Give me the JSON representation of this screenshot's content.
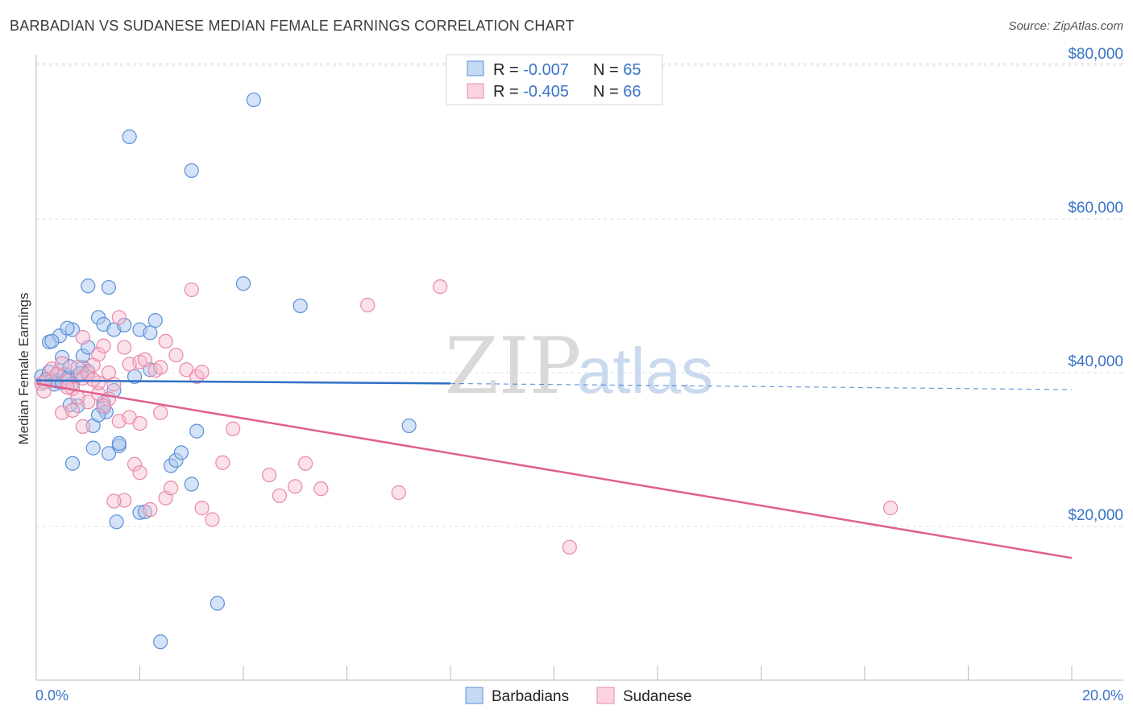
{
  "title": "BARBADIAN VS SUDANESE MEDIAN FEMALE EARNINGS CORRELATION CHART",
  "source": "Source: ZipAtlas.com",
  "watermark": {
    "zip": "ZIP",
    "atlas": "atlas"
  },
  "colors": {
    "blue_fill": "#a9c8f0",
    "blue_stroke": "#5b8fd6",
    "blue_line": "#2f6fc4",
    "pink_fill": "#f7bcd0",
    "pink_stroke": "#e888a8",
    "pink_line": "#e0608e",
    "axis_text": "#3a74c8",
    "grid": "#dddddd"
  },
  "legend": {
    "rows": [
      {
        "r_label": "R = ",
        "r_value": "-0.007",
        "n_label": "N = ",
        "n_value": "65",
        "series": "barbadians"
      },
      {
        "r_label": "R = ",
        "r_value": "-0.405",
        "n_label": "N = ",
        "n_value": "66",
        "series": "sudanese"
      }
    ]
  },
  "chart_data": {
    "type": "scatter",
    "title": "BARBADIAN VS SUDANESE MEDIAN FEMALE EARNINGS CORRELATION CHART",
    "xlabel": "",
    "ylabel": "Median Female Earnings",
    "xlim": [
      0,
      20
    ],
    "ylim": [
      0,
      82000
    ],
    "x_tick_labels": [
      "0.0%",
      "20.0%"
    ],
    "y_ticks": [
      20000,
      40000,
      60000,
      80000
    ],
    "y_tick_labels": [
      "$20,000",
      "$40,000",
      "$60,000",
      "$80,000"
    ],
    "legend_bottom": [
      "Barbadians",
      "Sudanese"
    ],
    "series": [
      {
        "name": "Barbadians",
        "points": [
          [
            0.1,
            39500
          ],
          [
            0.15,
            38800
          ],
          [
            0.2,
            39200
          ],
          [
            0.25,
            40100
          ],
          [
            0.3,
            39000
          ],
          [
            0.35,
            38500
          ],
          [
            0.4,
            38900
          ],
          [
            0.45,
            40300
          ],
          [
            0.5,
            38700
          ],
          [
            0.55,
            39800
          ],
          [
            0.6,
            39300
          ],
          [
            0.65,
            40800
          ],
          [
            0.7,
            38600
          ],
          [
            0.8,
            39600
          ],
          [
            0.9,
            40700
          ],
          [
            1.0,
            40200
          ],
          [
            0.25,
            44000
          ],
          [
            0.45,
            44800
          ],
          [
            0.7,
            45600
          ],
          [
            0.9,
            42200
          ],
          [
            1.2,
            47200
          ],
          [
            1.3,
            46300
          ],
          [
            1.5,
            45600
          ],
          [
            1.7,
            46200
          ],
          [
            2.0,
            45600
          ],
          [
            2.2,
            45200
          ],
          [
            2.3,
            46800
          ],
          [
            1.0,
            43300
          ],
          [
            0.5,
            42000
          ],
          [
            0.6,
            45800
          ],
          [
            1.0,
            51300
          ],
          [
            1.4,
            51100
          ],
          [
            4.0,
            51600
          ],
          [
            5.1,
            48700
          ],
          [
            0.8,
            35700
          ],
          [
            1.1,
            30200
          ],
          [
            1.4,
            29500
          ],
          [
            1.6,
            30500
          ],
          [
            0.7,
            28200
          ],
          [
            1.1,
            33100
          ],
          [
            1.3,
            36100
          ],
          [
            1.5,
            37700
          ],
          [
            2.6,
            27900
          ],
          [
            2.7,
            28600
          ],
          [
            2.8,
            29600
          ],
          [
            3.1,
            32400
          ],
          [
            3.0,
            25500
          ],
          [
            2.0,
            21800
          ],
          [
            2.1,
            21900
          ],
          [
            1.55,
            20600
          ],
          [
            1.3,
            35400
          ],
          [
            7.2,
            33100
          ],
          [
            1.9,
            39500
          ],
          [
            2.2,
            40400
          ],
          [
            4.2,
            75500
          ],
          [
            1.8,
            70700
          ],
          [
            3.0,
            66300
          ],
          [
            3.5,
            10000
          ],
          [
            2.4,
            5000
          ],
          [
            1.35,
            34900
          ],
          [
            0.65,
            35800
          ],
          [
            1.2,
            34500
          ],
          [
            1.6,
            30800
          ],
          [
            0.3,
            44100
          ],
          [
            0.85,
            39900
          ]
        ]
      },
      {
        "name": "Sudanese",
        "points": [
          [
            0.1,
            38600
          ],
          [
            0.2,
            39100
          ],
          [
            0.3,
            40500
          ],
          [
            0.4,
            39800
          ],
          [
            0.5,
            41200
          ],
          [
            0.6,
            38900
          ],
          [
            0.7,
            37900
          ],
          [
            0.8,
            40700
          ],
          [
            0.9,
            39300
          ],
          [
            1.0,
            39900
          ],
          [
            1.1,
            41000
          ],
          [
            1.2,
            42400
          ],
          [
            1.3,
            43500
          ],
          [
            1.4,
            40000
          ],
          [
            1.5,
            38500
          ],
          [
            1.6,
            47200
          ],
          [
            1.7,
            43300
          ],
          [
            1.8,
            41100
          ],
          [
            2.0,
            41400
          ],
          [
            2.1,
            41700
          ],
          [
            2.3,
            40300
          ],
          [
            2.4,
            40700
          ],
          [
            2.5,
            44100
          ],
          [
            2.7,
            42300
          ],
          [
            2.9,
            40400
          ],
          [
            3.1,
            39500
          ],
          [
            3.2,
            40100
          ],
          [
            0.5,
            34800
          ],
          [
            0.7,
            35100
          ],
          [
            0.9,
            33000
          ],
          [
            1.0,
            36200
          ],
          [
            1.2,
            37300
          ],
          [
            1.4,
            36600
          ],
          [
            1.6,
            33700
          ],
          [
            1.8,
            34200
          ],
          [
            2.0,
            33400
          ],
          [
            2.4,
            34800
          ],
          [
            0.9,
            44600
          ],
          [
            3.0,
            50800
          ],
          [
            7.8,
            51200
          ],
          [
            6.4,
            48800
          ],
          [
            1.9,
            28100
          ],
          [
            2.0,
            27000
          ],
          [
            2.5,
            23700
          ],
          [
            2.6,
            25000
          ],
          [
            3.2,
            22400
          ],
          [
            3.6,
            28300
          ],
          [
            3.8,
            32700
          ],
          [
            4.5,
            26700
          ],
          [
            4.7,
            24000
          ],
          [
            5.0,
            25200
          ],
          [
            5.2,
            28200
          ],
          [
            5.5,
            24900
          ],
          [
            7.0,
            24400
          ],
          [
            10.3,
            17300
          ],
          [
            16.5,
            22400
          ],
          [
            2.2,
            22200
          ],
          [
            1.7,
            23400
          ],
          [
            1.5,
            23300
          ],
          [
            3.4,
            20900
          ],
          [
            1.2,
            38700
          ],
          [
            0.6,
            38100
          ],
          [
            0.8,
            36800
          ],
          [
            1.1,
            39100
          ],
          [
            1.3,
            35700
          ],
          [
            0.15,
            37600
          ]
        ]
      }
    ],
    "trend_lines": [
      {
        "series": "Barbadians",
        "x": [
          0,
          8.0
        ],
        "y": [
          39000,
          38600
        ],
        "dashed_extension_to_x": 20,
        "dashed_end_y": 37800
      },
      {
        "series": "Sudanese",
        "x": [
          0,
          20
        ],
        "y": [
          38600,
          15900
        ]
      }
    ]
  }
}
